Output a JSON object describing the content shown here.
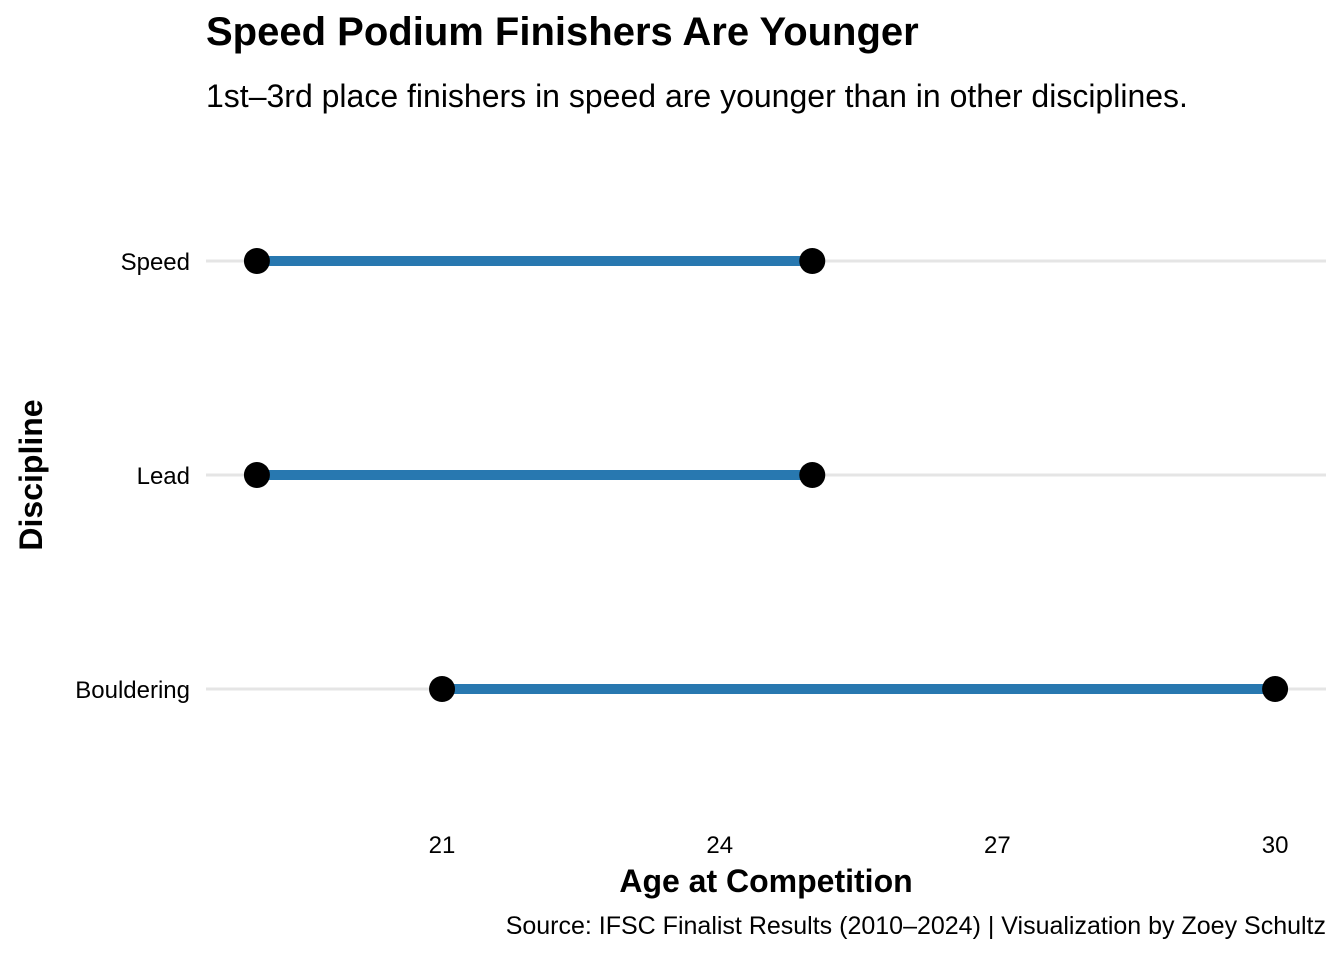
{
  "chart_data": {
    "type": "dumbbell",
    "title": "Speed Podium Finishers Are Younger",
    "subtitle": "1st–3rd place finishers in speed are younger than in other disciplines.",
    "caption": "Source: IFSC Finalist Results (2010–2024) | Visualization by Zoey Schultz",
    "xlabel": "Age at Competition",
    "ylabel": "Discipline",
    "categories": [
      "Speed",
      "Lead",
      "Bouldering"
    ],
    "series": [
      {
        "category": "Speed",
        "min": 19,
        "max": 25
      },
      {
        "category": "Lead",
        "min": 19,
        "max": 25
      },
      {
        "category": "Bouldering",
        "min": 21,
        "max": 30
      }
    ],
    "xticks": [
      21,
      24,
      27,
      30
    ],
    "xlim": [
      18.45,
      30.55
    ],
    "grid": "horizontal-major",
    "colors": {
      "segment": "#2878b0",
      "point": "#000000",
      "grid": "#e5e5e5"
    }
  }
}
